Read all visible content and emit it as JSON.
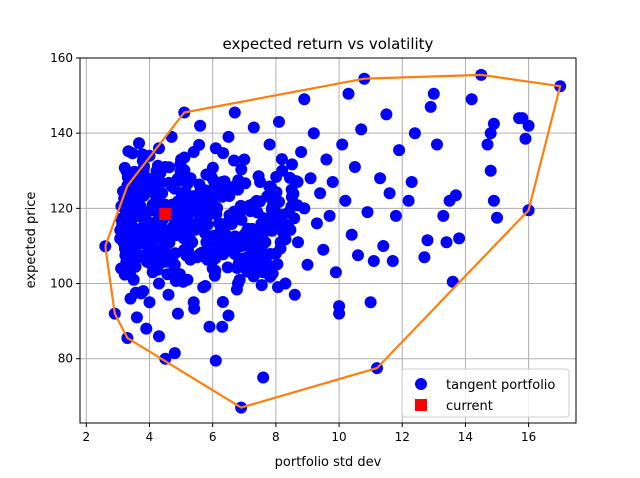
{
  "chart_data": {
    "type": "scatter",
    "title": "expected return vs volatility",
    "xlabel": "portfolio std dev",
    "ylabel": "expected price",
    "xlim": [
      1.8,
      17.5
    ],
    "ylim": [
      62.9,
      160
    ],
    "xticks": [
      2,
      4,
      6,
      8,
      10,
      12,
      14,
      16
    ],
    "yticks": [
      80,
      100,
      120,
      140,
      160
    ],
    "grid": true,
    "legend_position": "lower-right",
    "colors": {
      "scatter": "#0000ff",
      "current": "#ff0000",
      "hull": "#ff7f0e",
      "grid": "#b0b0b0"
    },
    "series": [
      {
        "name": "tangent portfolio",
        "kind": "scatter",
        "points": [
          [
            2.6,
            109.9
          ],
          [
            2.9,
            92.0
          ],
          [
            3.1,
            104.0
          ],
          [
            3.2,
            112.0
          ],
          [
            3.3,
            126.0
          ],
          [
            3.3,
            85.5
          ],
          [
            3.4,
            96.0
          ],
          [
            3.5,
            119.0
          ],
          [
            3.5,
            101.0
          ],
          [
            3.6,
            113.0
          ],
          [
            3.6,
            91.0
          ],
          [
            3.7,
            123.0
          ],
          [
            3.7,
            107.0
          ],
          [
            3.8,
            98.0
          ],
          [
            3.8,
            130.0
          ],
          [
            3.9,
            117.0
          ],
          [
            3.9,
            88.0
          ],
          [
            4.0,
            110.0
          ],
          [
            4.0,
            134.0
          ],
          [
            4.0,
            95.0
          ],
          [
            4.1,
            121.0
          ],
          [
            4.1,
            103.0
          ],
          [
            4.2,
            127.0
          ],
          [
            4.2,
            114.0
          ],
          [
            4.3,
            100.0
          ],
          [
            4.3,
            136.0
          ],
          [
            4.3,
            86.0
          ],
          [
            4.4,
            124.0
          ],
          [
            4.4,
            108.0
          ],
          [
            4.5,
            131.0
          ],
          [
            4.5,
            118.0
          ],
          [
            4.5,
            80.0
          ],
          [
            4.6,
            112.0
          ],
          [
            4.6,
            97.0
          ],
          [
            4.7,
            139.0
          ],
          [
            4.7,
            126.0
          ],
          [
            4.8,
            105.0
          ],
          [
            4.8,
            81.5
          ],
          [
            4.9,
            115.0
          ],
          [
            4.9,
            92.0
          ],
          [
            5.0,
            122.0
          ],
          [
            5.0,
            133.0
          ],
          [
            5.1,
            109.0
          ],
          [
            5.1,
            145.5
          ],
          [
            5.2,
            119.0
          ],
          [
            5.2,
            101.0
          ],
          [
            5.3,
            128.0
          ],
          [
            5.3,
            114.0
          ],
          [
            5.4,
            135.0
          ],
          [
            5.4,
            95.0
          ],
          [
            5.5,
            123.0
          ],
          [
            5.5,
            107.0
          ],
          [
            5.6,
            142.0
          ],
          [
            5.6,
            117.0
          ],
          [
            5.7,
            99.0
          ],
          [
            5.8,
            129.0
          ],
          [
            5.8,
            111.0
          ],
          [
            5.9,
            88.5
          ],
          [
            6.0,
            121.0
          ],
          [
            6.0,
            104.0
          ],
          [
            6.1,
            136.0
          ],
          [
            6.1,
            79.5
          ],
          [
            6.2,
            116.0
          ],
          [
            6.3,
            127.0
          ],
          [
            6.3,
            88.5
          ],
          [
            6.4,
            110.0
          ],
          [
            6.5,
            91.5
          ],
          [
            6.5,
            139.0
          ],
          [
            6.6,
            118.0
          ],
          [
            6.7,
            145.5
          ],
          [
            6.8,
            125.0
          ],
          [
            6.8,
            100.0
          ],
          [
            6.9,
            67.0
          ],
          [
            7.0,
            113.0
          ],
          [
            7.0,
            133.0
          ],
          [
            7.1,
            106.0
          ],
          [
            7.2,
            120.0
          ],
          [
            7.3,
            141.5
          ],
          [
            7.4,
            110.0
          ],
          [
            7.5,
            127.0
          ],
          [
            7.6,
            75.0
          ],
          [
            7.6,
            103.0
          ],
          [
            7.7,
            116.0
          ],
          [
            7.8,
            137.0
          ],
          [
            7.9,
            122.0
          ],
          [
            8.0,
            108.0
          ],
          [
            8.1,
            143.0
          ],
          [
            8.2,
            130.0
          ],
          [
            8.3,
            100.0
          ],
          [
            8.4,
            115.0
          ],
          [
            8.5,
            125.0
          ],
          [
            8.6,
            97.0
          ],
          [
            8.7,
            111.0
          ],
          [
            8.8,
            135.0
          ],
          [
            8.9,
            149.0
          ],
          [
            8.9,
            120.0
          ],
          [
            9.0,
            105.0
          ],
          [
            9.1,
            128.0
          ],
          [
            9.2,
            140.0
          ],
          [
            9.3,
            116.0
          ],
          [
            9.4,
            124.0
          ],
          [
            9.5,
            109.0
          ],
          [
            9.6,
            133.0
          ],
          [
            9.7,
            118.0
          ],
          [
            9.8,
            127.0
          ],
          [
            9.9,
            103.0
          ],
          [
            10.0,
            94.0
          ],
          [
            10.0,
            92.0
          ],
          [
            10.1,
            137.0
          ],
          [
            10.2,
            122.0
          ],
          [
            10.3,
            150.5
          ],
          [
            10.4,
            113.0
          ],
          [
            10.5,
            131.0
          ],
          [
            10.6,
            107.5
          ],
          [
            10.7,
            141.0
          ],
          [
            10.8,
            154.5
          ],
          [
            10.9,
            119.0
          ],
          [
            11.0,
            95.0
          ],
          [
            11.1,
            106.0
          ],
          [
            11.2,
            77.5
          ],
          [
            11.3,
            128.0
          ],
          [
            11.4,
            110.0
          ],
          [
            11.5,
            145.0
          ],
          [
            11.6,
            124.0
          ],
          [
            11.7,
            106.0
          ],
          [
            11.8,
            118.0
          ],
          [
            11.9,
            135.5
          ],
          [
            12.2,
            122.0
          ],
          [
            12.3,
            127.0
          ],
          [
            12.4,
            140.0
          ],
          [
            12.7,
            107.0
          ],
          [
            12.8,
            111.5
          ],
          [
            12.9,
            147.0
          ],
          [
            13.0,
            150.5
          ],
          [
            13.1,
            137.0
          ],
          [
            13.3,
            118.0
          ],
          [
            13.4,
            111.0
          ],
          [
            13.5,
            122.0
          ],
          [
            13.6,
            100.5
          ],
          [
            13.7,
            123.5
          ],
          [
            13.8,
            112.0
          ],
          [
            14.2,
            149.0
          ],
          [
            14.5,
            155.5
          ],
          [
            14.7,
            137.0
          ],
          [
            14.8,
            140.0
          ],
          [
            14.8,
            130.0
          ],
          [
            14.9,
            142.5
          ],
          [
            14.9,
            122.0
          ],
          [
            15.0,
            117.5
          ],
          [
            15.7,
            144.0
          ],
          [
            15.8,
            144.0
          ],
          [
            15.9,
            138.5
          ],
          [
            16.0,
            142.0
          ],
          [
            16.0,
            119.5
          ],
          [
            17.0,
            152.5
          ]
        ]
      },
      {
        "name": "current",
        "kind": "marker",
        "points": [
          [
            4.5,
            118.5
          ]
        ]
      },
      {
        "name": "",
        "kind": "hull",
        "points": [
          [
            2.6,
            109.9
          ],
          [
            2.9,
            92.0
          ],
          [
            3.3,
            85.5
          ],
          [
            6.9,
            67.0
          ],
          [
            11.2,
            77.5
          ],
          [
            16.0,
            119.5
          ],
          [
            17.0,
            152.5
          ],
          [
            14.5,
            155.5
          ],
          [
            10.8,
            154.5
          ],
          [
            5.1,
            145.5
          ],
          [
            3.3,
            126.0
          ],
          [
            2.6,
            109.9
          ]
        ]
      }
    ],
    "cluster": {
      "x_range": [
        3.2,
        8.8
      ],
      "y_range": [
        90,
        138
      ],
      "count": 420,
      "seed": 7
    }
  },
  "legend": {
    "items": [
      {
        "label": "tangent portfolio"
      },
      {
        "label": "current"
      }
    ]
  }
}
